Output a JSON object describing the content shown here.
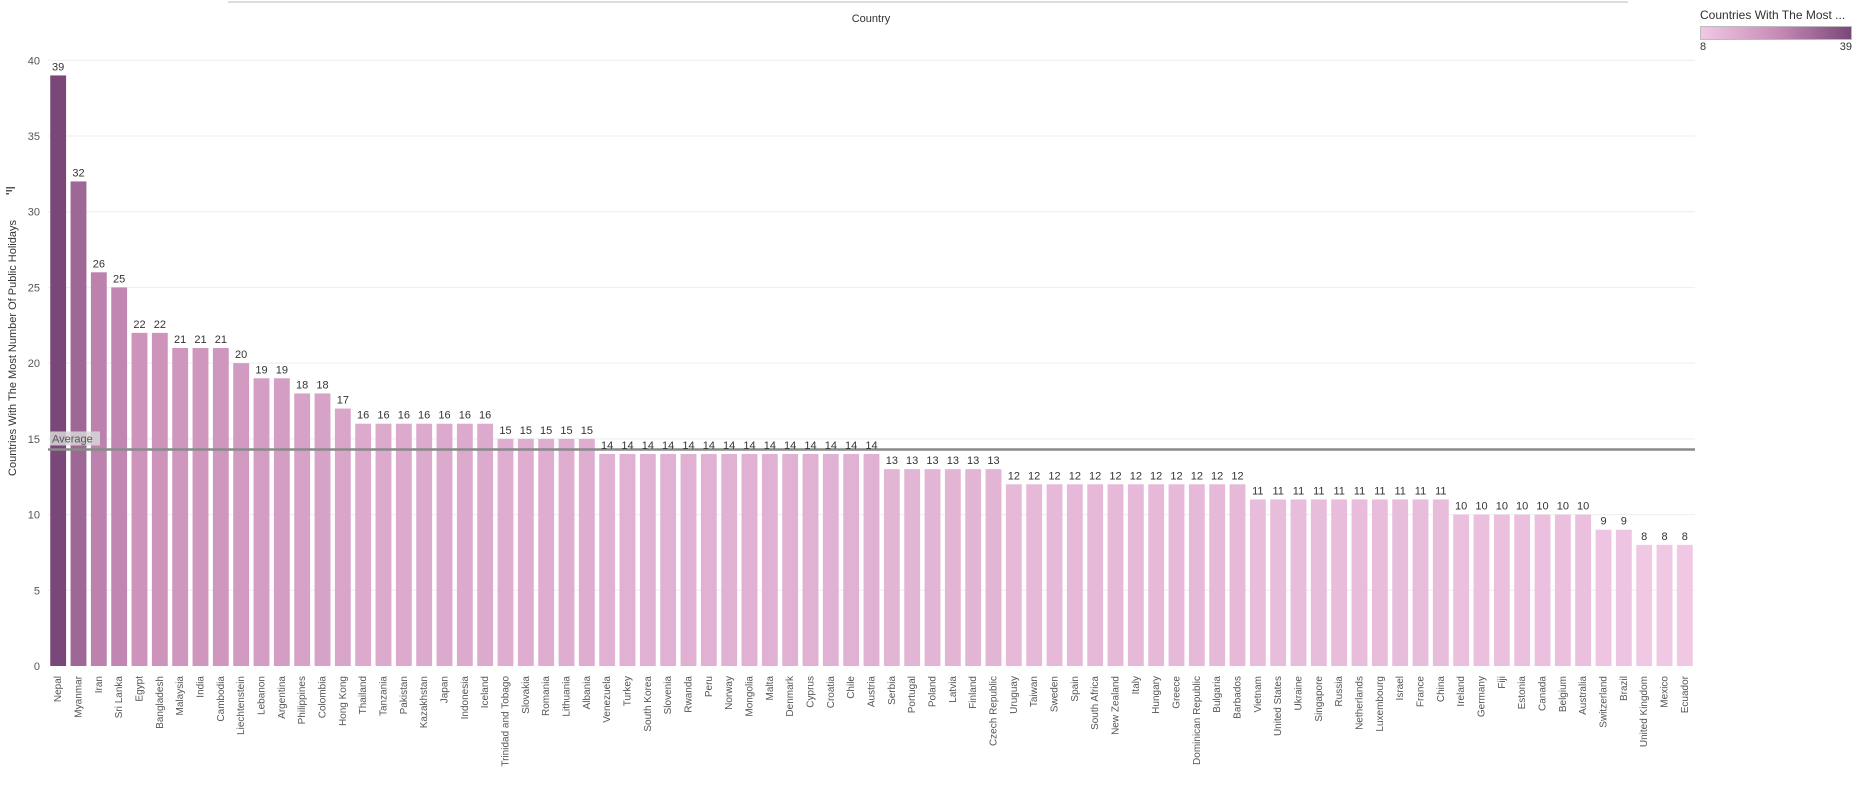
{
  "chart_data": {
    "type": "bar",
    "xlabel": "Country",
    "ylabel": "Countries With The Most Number Of Public Holidays",
    "ylim": [
      0,
      42
    ],
    "yticks": [
      0,
      5,
      10,
      15,
      20,
      25,
      30,
      35,
      40
    ],
    "average": 14.3,
    "average_label": "Average",
    "categories": [
      "Nepal",
      "Myanmar",
      "Iran",
      "Sri Lanka",
      "Egypt",
      "Bangladesh",
      "Malaysia",
      "India",
      "Cambodia",
      "Liechtenstein",
      "Lebanon",
      "Argentina",
      "Philippines",
      "Colombia",
      "Hong Kong",
      "Thailand",
      "Tanzania",
      "Pakistan",
      "Kazakhstan",
      "Japan",
      "Indonesia",
      "Iceland",
      "Trinidad and Tobago",
      "Slovakia",
      "Romania",
      "Lithuania",
      "Albania",
      "Venezuela",
      "Turkey",
      "South Korea",
      "Slovenia",
      "Rwanda",
      "Peru",
      "Norway",
      "Mongolia",
      "Malta",
      "Denmark",
      "Cyprus",
      "Croatia",
      "Chile",
      "Austria",
      "Serbia",
      "Portugal",
      "Poland",
      "Latvia",
      "Finland",
      "Czech Republic",
      "Uruguay",
      "Taiwan",
      "Sweden",
      "Spain",
      "South Africa",
      "New Zealand",
      "Italy",
      "Hungary",
      "Greece",
      "Dominican Republic",
      "Bulgaria",
      "Barbados",
      "Vietnam",
      "United States",
      "Ukraine",
      "Singapore",
      "Russia",
      "Netherlands",
      "Luxembourg",
      "Israel",
      "France",
      "China",
      "Ireland",
      "Germany",
      "Fiji",
      "Estonia",
      "Canada",
      "Belgium",
      "Australia",
      "Switzerland",
      "Brazil",
      "United Kingdom",
      "Mexico",
      "Ecuador"
    ],
    "values": [
      39,
      32,
      26,
      25,
      22,
      22,
      21,
      21,
      21,
      20,
      19,
      19,
      18,
      18,
      17,
      16,
      16,
      16,
      16,
      16,
      16,
      16,
      15,
      15,
      15,
      15,
      15,
      14,
      14,
      14,
      14,
      14,
      14,
      14,
      14,
      14,
      14,
      14,
      14,
      14,
      14,
      13,
      13,
      13,
      13,
      13,
      13,
      12,
      12,
      12,
      12,
      12,
      12,
      12,
      12,
      12,
      12,
      12,
      12,
      11,
      11,
      11,
      11,
      11,
      11,
      11,
      11,
      11,
      11,
      10,
      10,
      10,
      10,
      10,
      10,
      10,
      9,
      9,
      8,
      8,
      8
    ],
    "color_scale": {
      "low": "#f0c8e4",
      "mid": "#c98db7",
      "high": "#7a4779"
    },
    "grid": true,
    "legend": {
      "title": "Countries With The Most ...",
      "min_label": "8",
      "max_label": "39",
      "placement": "top-right"
    }
  }
}
